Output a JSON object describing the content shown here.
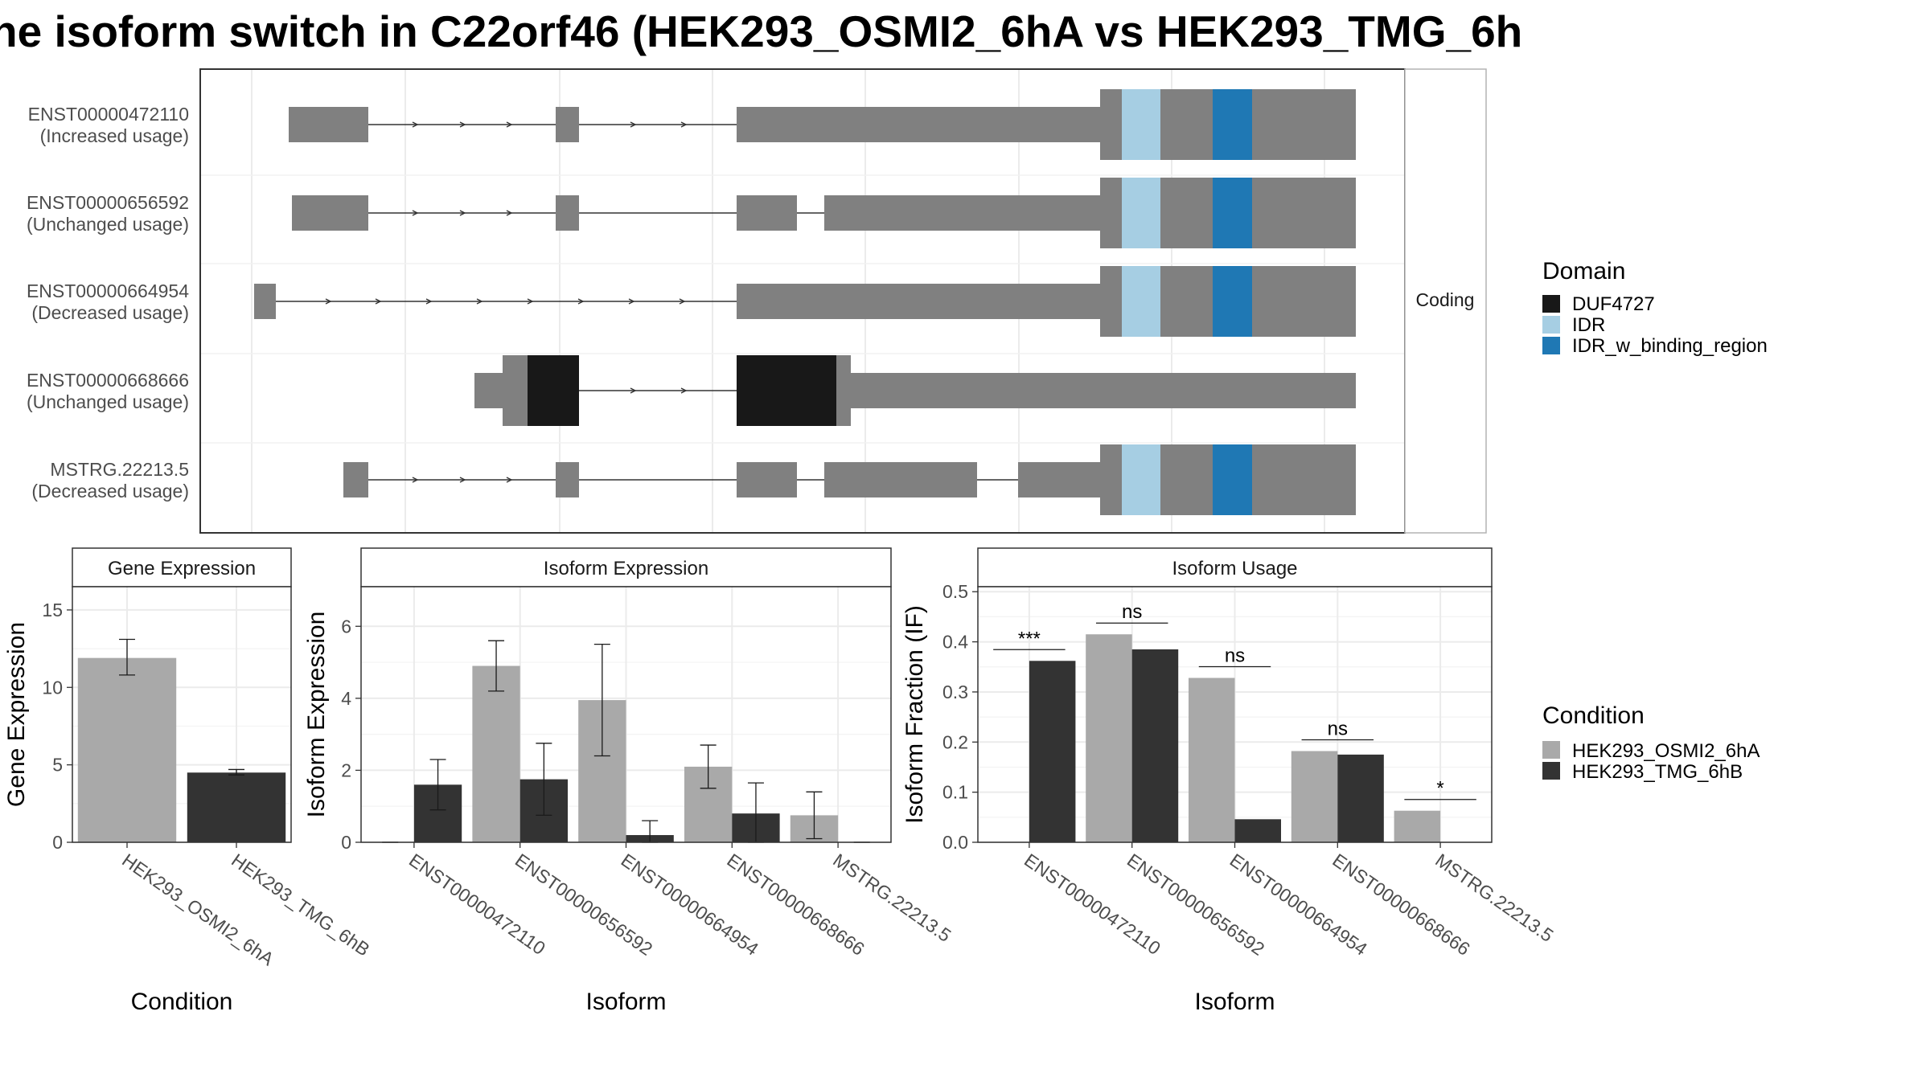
{
  "title": "ne isoform switch in C22orf46 (HEK293_OSMI2_6hA vs HEK293_TMG_6h",
  "colors": {
    "condition_a": "#a9a9a9",
    "condition_b": "#333333",
    "exon": "#808080",
    "DUF4727": "#181818",
    "IDR": "#a6cee3",
    "IDR_w_binding_region": "#1f78b4",
    "strip_bg": "#ffffff",
    "grid": "#ebebeb"
  },
  "transcript_panel": {
    "strip_label": "Coding",
    "transcripts": [
      {
        "id": "ENST00000472110",
        "usage": "(Increased usage)"
      },
      {
        "id": "ENST00000656592",
        "usage": "(Unchanged usage)"
      },
      {
        "id": "ENST00000664954",
        "usage": "(Decreased usage)"
      },
      {
        "id": "ENST00000668666",
        "usage": "(Unchanged usage)"
      },
      {
        "id": "MSTRG.22213.5",
        "usage": "(Decreased usage)"
      }
    ]
  },
  "domain_legend": {
    "title": "Domain",
    "items": [
      "DUF4727",
      "IDR",
      "IDR_w_binding_region"
    ]
  },
  "condition_legend": {
    "title": "Condition",
    "items": [
      "HEK293_OSMI2_6hA",
      "HEK293_TMG_6hB"
    ]
  },
  "chart_data": [
    {
      "type": "bar",
      "strip": "Gene Expression",
      "xlabel": "Condition",
      "ylabel": "Gene Expression",
      "ylim": [
        0,
        16.5
      ],
      "yticks": [
        0,
        5,
        10,
        15
      ],
      "categories": [
        "HEK293_OSMI2_6hA",
        "HEK293_TMG_6hB"
      ],
      "values": [
        11.9,
        4.5
      ],
      "errors": [
        [
          10.8,
          13.1
        ],
        [
          4.35,
          4.7
        ]
      ]
    },
    {
      "type": "bar",
      "strip": "Isoform Expression",
      "xlabel": "Isoform",
      "ylabel": "Isoform Expression",
      "ylim": [
        0,
        7.1
      ],
      "yticks": [
        0,
        2,
        4,
        6
      ],
      "categories": [
        "ENST00000472110",
        "ENST00000656592",
        "ENST00000664954",
        "ENST00000668666",
        "MSTRG.22213.5"
      ],
      "series": [
        {
          "name": "HEK293_OSMI2_6hA",
          "values": [
            0,
            4.9,
            3.95,
            2.1,
            0.75
          ],
          "errors": [
            [
              0,
              0
            ],
            [
              4.2,
              5.6
            ],
            [
              2.4,
              5.5
            ],
            [
              1.5,
              2.7
            ],
            [
              0.1,
              1.4
            ]
          ]
        },
        {
          "name": "HEK293_TMG_6hB",
          "values": [
            1.6,
            1.75,
            0.2,
            0.8,
            0
          ],
          "errors": [
            [
              0.9,
              2.3
            ],
            [
              0.75,
              2.75
            ],
            [
              0,
              0.6
            ],
            [
              0,
              1.65
            ],
            [
              0,
              0
            ]
          ]
        }
      ]
    },
    {
      "type": "bar",
      "strip": "Isoform Usage",
      "xlabel": "Isoform",
      "ylabel": "Isoform Fraction (IF)",
      "ylim": [
        0,
        0.51
      ],
      "yticks": [
        0.0,
        0.1,
        0.2,
        0.3,
        0.4,
        0.5
      ],
      "ytick_labels": [
        "0.0",
        "0.1",
        "0.2",
        "0.3",
        "0.4",
        "0.5"
      ],
      "categories": [
        "ENST00000472110",
        "ENST00000656592",
        "ENST00000664954",
        "ENST00000668666",
        "MSTRG.22213.5"
      ],
      "series": [
        {
          "name": "HEK293_OSMI2_6hA",
          "values": [
            0,
            0.415,
            0.328,
            0.182,
            0.063
          ]
        },
        {
          "name": "HEK293_TMG_6hB",
          "values": [
            0.362,
            0.385,
            0.046,
            0.175,
            0
          ]
        }
      ],
      "significance": [
        "***",
        "ns",
        "ns",
        "ns",
        "*"
      ]
    }
  ]
}
